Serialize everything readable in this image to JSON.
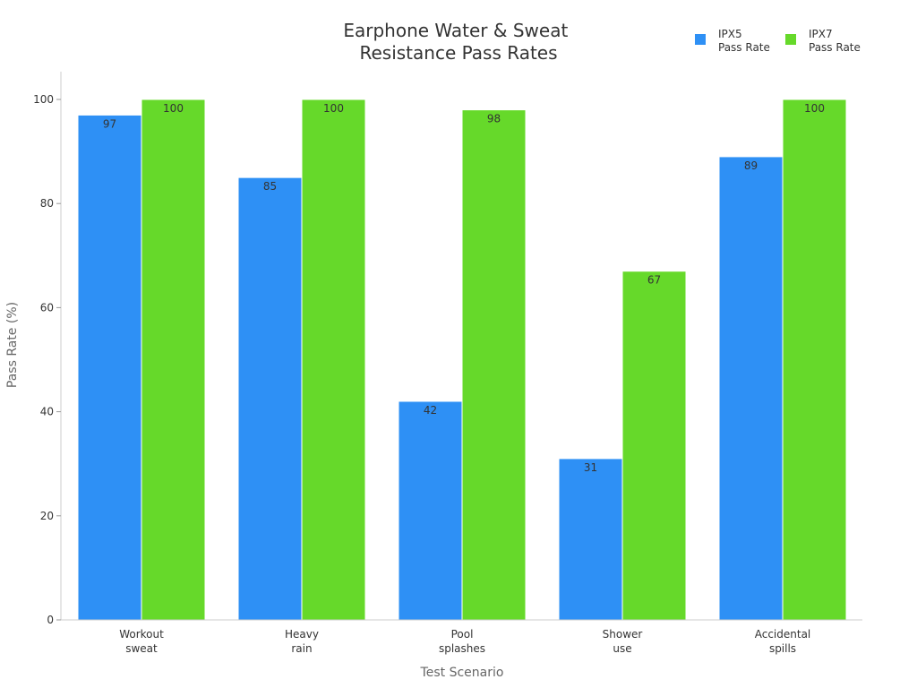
{
  "chart_data": {
    "type": "bar",
    "title": [
      "Earphone Water & Sweat",
      "Resistance Pass Rates"
    ],
    "categories": [
      [
        "Workout",
        "sweat"
      ],
      [
        "Heavy",
        "rain"
      ],
      [
        "Pool",
        "splashes"
      ],
      [
        "Shower",
        "use"
      ],
      [
        "Accidental",
        "spills"
      ]
    ],
    "series": [
      {
        "name": [
          "IPX5",
          "Pass Rate"
        ],
        "color": "#2e90f5",
        "values": [
          97,
          85,
          42,
          31,
          89
        ]
      },
      {
        "name": [
          "IPX7",
          "Pass Rate"
        ],
        "color": "#66d92a",
        "values": [
          100,
          100,
          98,
          67,
          100
        ]
      }
    ],
    "xlabel": "Test Scenario",
    "ylabel": "Pass Rate (%)",
    "ylim": [
      0,
      100
    ],
    "yticks": [
      0,
      20,
      40,
      60,
      80,
      100
    ],
    "grid": false,
    "legend_position": "top-right"
  }
}
